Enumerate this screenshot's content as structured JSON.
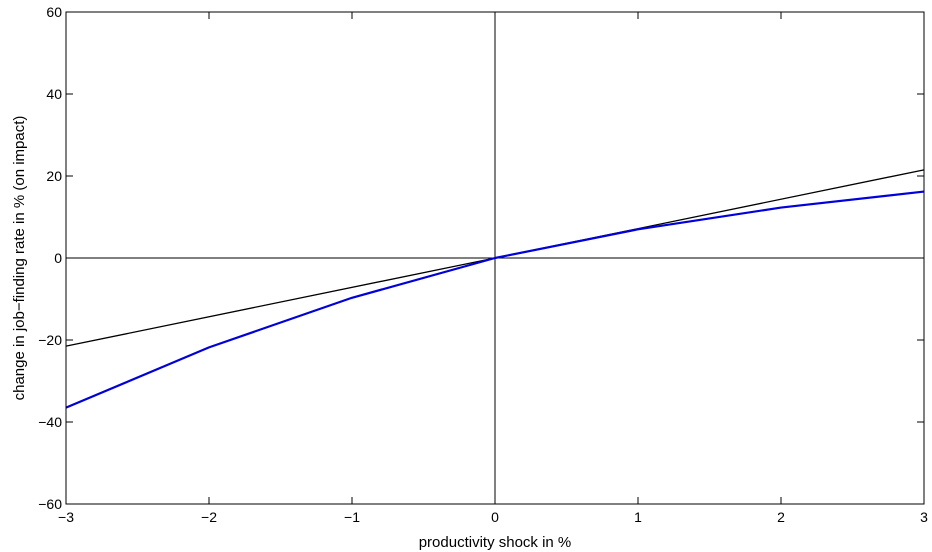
{
  "chart_data": {
    "type": "line",
    "title": "",
    "xlabel": "productivity shock in %",
    "ylabel": "change in job−finding rate in % (on impact)",
    "xlim": [
      -3,
      3
    ],
    "ylim": [
      -60,
      60
    ],
    "xticks": [
      -3,
      -2,
      -1,
      0,
      1,
      2,
      3
    ],
    "yticks": [
      -60,
      -40,
      -20,
      0,
      20,
      40,
      60
    ],
    "xtick_labels": [
      "−3",
      "−2",
      "−1",
      "0",
      "1",
      "2",
      "3"
    ],
    "ytick_labels": [
      "−60",
      "−40",
      "−20",
      "0",
      "20",
      "40",
      "60"
    ],
    "grid": false,
    "reference_lines": {
      "x": 0,
      "y": 0
    },
    "series": [
      {
        "color": "#000000",
        "x": [
          -3,
          3
        ],
        "y": [
          -21.5,
          21.5
        ]
      },
      {
        "color": "#0000dd",
        "x": [
          -3,
          -2,
          -1,
          0,
          1,
          2,
          3
        ],
        "y": [
          -36.5,
          -21.8,
          -9.7,
          0,
          7.0,
          12.3,
          16.2
        ]
      }
    ]
  }
}
